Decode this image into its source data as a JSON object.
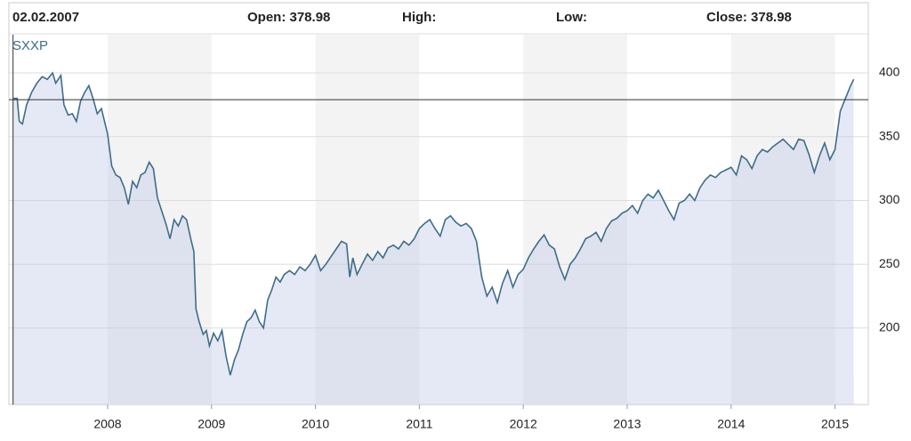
{
  "header": {
    "date": "02.02.2007",
    "open": "Open: 378.98",
    "high": "High:",
    "low": "Low:",
    "close": "Close: 378.98"
  },
  "chart_data": {
    "type": "line",
    "series": [
      {
        "name": "SXXP",
        "color": "#3e6d8a",
        "x": [
          2007.09,
          2007.13,
          2007.15,
          2007.18,
          2007.22,
          2007.27,
          2007.32,
          2007.37,
          2007.42,
          2007.47,
          2007.5,
          2007.55,
          2007.58,
          2007.62,
          2007.66,
          2007.7,
          2007.74,
          2007.78,
          2007.82,
          2007.86,
          2007.9,
          2007.94,
          2007.97,
          2008.0,
          2008.04,
          2008.08,
          2008.12,
          2008.16,
          2008.2,
          2008.24,
          2008.28,
          2008.32,
          2008.36,
          2008.4,
          2008.44,
          2008.48,
          2008.52,
          2008.56,
          2008.6,
          2008.64,
          2008.68,
          2008.72,
          2008.76,
          2008.8,
          2008.83,
          2008.85,
          2008.88,
          2008.92,
          2008.95,
          2008.98,
          2009.02,
          2009.06,
          2009.1,
          2009.14,
          2009.18,
          2009.22,
          2009.26,
          2009.3,
          2009.34,
          2009.38,
          2009.42,
          2009.46,
          2009.5,
          2009.54,
          2009.58,
          2009.62,
          2009.66,
          2009.7,
          2009.75,
          2009.8,
          2009.85,
          2009.9,
          2009.95,
          2010.0,
          2010.05,
          2010.1,
          2010.15,
          2010.2,
          2010.25,
          2010.3,
          2010.33,
          2010.36,
          2010.4,
          2010.45,
          2010.5,
          2010.55,
          2010.6,
          2010.65,
          2010.7,
          2010.75,
          2010.8,
          2010.85,
          2010.9,
          2010.95,
          2011.0,
          2011.05,
          2011.1,
          2011.15,
          2011.2,
          2011.25,
          2011.3,
          2011.35,
          2011.4,
          2011.45,
          2011.5,
          2011.55,
          2011.6,
          2011.65,
          2011.7,
          2011.75,
          2011.8,
          2011.85,
          2011.9,
          2011.95,
          2012.0,
          2012.05,
          2012.1,
          2012.15,
          2012.2,
          2012.25,
          2012.3,
          2012.35,
          2012.4,
          2012.45,
          2012.5,
          2012.55,
          2012.6,
          2012.65,
          2012.7,
          2012.75,
          2012.8,
          2012.85,
          2012.9,
          2012.95,
          2013.0,
          2013.05,
          2013.1,
          2013.15,
          2013.2,
          2013.25,
          2013.3,
          2013.35,
          2013.4,
          2013.45,
          2013.5,
          2013.55,
          2013.6,
          2013.65,
          2013.7,
          2013.75,
          2013.8,
          2013.85,
          2013.9,
          2013.95,
          2014.0,
          2014.05,
          2014.1,
          2014.15,
          2014.2,
          2014.25,
          2014.3,
          2014.35,
          2014.4,
          2014.45,
          2014.5,
          2014.55,
          2014.6,
          2014.65,
          2014.7,
          2014.75,
          2014.8,
          2014.85,
          2014.9,
          2014.95,
          2015.0,
          2015.05,
          2015.1,
          2015.15,
          2015.18
        ],
        "values": [
          380,
          380,
          362,
          360,
          375,
          385,
          392,
          397,
          395,
          400,
          392,
          398,
          375,
          367,
          368,
          362,
          378,
          385,
          390,
          380,
          368,
          372,
          362,
          352,
          327,
          320,
          318,
          310,
          297,
          315,
          310,
          320,
          322,
          330,
          325,
          302,
          292,
          282,
          270,
          285,
          280,
          288,
          285,
          270,
          260,
          215,
          205,
          195,
          198,
          186,
          196,
          190,
          198,
          178,
          163,
          175,
          183,
          195,
          205,
          208,
          214,
          205,
          200,
          222,
          230,
          240,
          236,
          242,
          245,
          242,
          248,
          245,
          250,
          257,
          245,
          250,
          256,
          262,
          268,
          266,
          240,
          255,
          242,
          250,
          258,
          253,
          260,
          255,
          263,
          265,
          262,
          268,
          265,
          270,
          278,
          282,
          285,
          278,
          272,
          285,
          288,
          283,
          280,
          282,
          278,
          268,
          240,
          225,
          232,
          220,
          235,
          245,
          232,
          242,
          246,
          255,
          262,
          268,
          273,
          265,
          262,
          248,
          238,
          250,
          255,
          262,
          270,
          272,
          275,
          268,
          278,
          284,
          286,
          290,
          292,
          296,
          290,
          300,
          305,
          302,
          308,
          300,
          292,
          285,
          298,
          300,
          305,
          300,
          310,
          316,
          320,
          318,
          322,
          324,
          326,
          320,
          335,
          332,
          325,
          335,
          340,
          338,
          342,
          345,
          348,
          344,
          340,
          348,
          347,
          336,
          322,
          335,
          345,
          332,
          340,
          370,
          380,
          390,
          395
        ]
      }
    ],
    "xlim": [
      2007.05,
      2015.32
    ],
    "xticks": [
      2008,
      2009,
      2010,
      2011,
      2012,
      2013,
      2014,
      2015
    ],
    "ylim": [
      140,
      430
    ],
    "yticks": [
      200,
      250,
      300,
      350,
      400
    ],
    "crosshair": {
      "x": 2007.09,
      "y": 378.98
    },
    "grid": true
  }
}
